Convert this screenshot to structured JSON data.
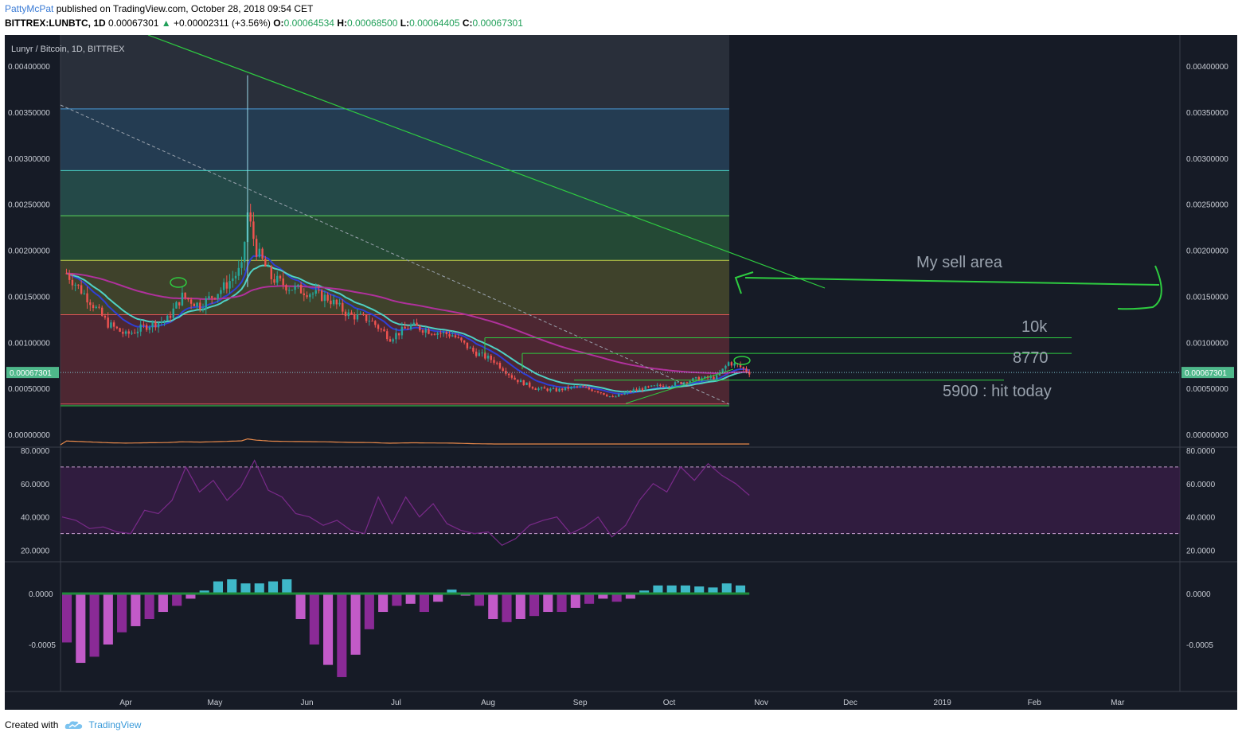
{
  "header": {
    "user": "PattyMcPat",
    "published": "published on TradingView.com, October 28, 2018 09:54 CET",
    "symbol": "BITTREX:LUNBTC, 1D",
    "last": "0.00067301",
    "arrow": "▲",
    "change": "+0.00002311 (+3.56%)",
    "o_label": "O:",
    "o": "0.00064534",
    "h_label": "H:",
    "h": "0.00068500",
    "l_label": "L:",
    "l": "0.00064405",
    "c_label": "C:",
    "c": "0.00067301"
  },
  "footer": {
    "created_with": "Created with",
    "brand": "TradingView"
  },
  "colors": {
    "background": "#161b26",
    "ema_fast": "#4fd1c5",
    "ma_slow": "#b0319c",
    "trendline": "#2ecc40",
    "annotation": "#9aa3ae",
    "rsi_line": "#7a2a8a",
    "up": "#26a69a",
    "down": "#ef5350"
  },
  "chart_data": [
    {
      "type": "candlestick",
      "title": "Lunyr / Bitcoin, 1D, BITTREX",
      "x_tick_labels": [
        "Apr",
        "May",
        "Jun",
        "Jul",
        "Aug",
        "Sep",
        "Oct",
        "Nov",
        "Dec",
        "2019",
        "Feb",
        "Mar"
      ],
      "y_tick_labels": [
        "0.00400000",
        "0.00350000",
        "0.00300000",
        "0.00250000",
        "0.00200000",
        "0.00150000",
        "0.00100000",
        "0.00050000",
        "0.00000000"
      ],
      "ylim": [
        0,
        0.0042
      ],
      "last_price_label": "0.00067301",
      "close_series": [
        [
          "2018-03-12",
          0.00175
        ],
        [
          "2018-03-20",
          0.00145
        ],
        [
          "2018-03-26",
          0.0012
        ],
        [
          "2018-04-01",
          0.00108
        ],
        [
          "2018-04-08",
          0.00118
        ],
        [
          "2018-04-15",
          0.00125
        ],
        [
          "2018-04-20",
          0.0015
        ],
        [
          "2018-04-26",
          0.0014
        ],
        [
          "2018-05-04",
          0.0016
        ],
        [
          "2018-05-10",
          0.0018
        ],
        [
          "2018-05-12",
          0.0024
        ],
        [
          "2018-05-15",
          0.002
        ],
        [
          "2018-05-20",
          0.0017
        ],
        [
          "2018-05-26",
          0.0016
        ],
        [
          "2018-06-01",
          0.00155
        ],
        [
          "2018-06-08",
          0.00148
        ],
        [
          "2018-06-15",
          0.0013
        ],
        [
          "2018-06-22",
          0.00125
        ],
        [
          "2018-06-29",
          0.00105
        ],
        [
          "2018-07-06",
          0.00118
        ],
        [
          "2018-07-13",
          0.00112
        ],
        [
          "2018-07-20",
          0.00108
        ],
        [
          "2018-07-27",
          0.0009
        ],
        [
          "2018-08-03",
          0.0008
        ],
        [
          "2018-08-10",
          0.0006
        ],
        [
          "2018-08-17",
          0.0005
        ],
        [
          "2018-08-24",
          0.00048
        ],
        [
          "2018-08-31",
          0.00052
        ],
        [
          "2018-09-07",
          0.00047
        ],
        [
          "2018-09-12",
          0.0004
        ],
        [
          "2018-09-19",
          0.00048
        ],
        [
          "2018-09-26",
          0.00052
        ],
        [
          "2018-10-03",
          0.00055
        ],
        [
          "2018-10-10",
          0.0006
        ],
        [
          "2018-10-17",
          0.00062
        ],
        [
          "2018-10-21",
          0.00078
        ],
        [
          "2018-10-24",
          0.00075
        ],
        [
          "2018-10-28",
          0.000673
        ]
      ],
      "fib_levels": [
        0.00033,
        0.0013,
        0.00189,
        0.002375,
        0.002865,
        0.003535
      ],
      "horizontal_lines": [
        {
          "label": "10k",
          "value": 0.00105
        },
        {
          "label": "8770",
          "value": 0.00088
        },
        {
          "label": "5900 : hit today",
          "value": 0.00059
        }
      ],
      "annotations": [
        "My sell area",
        "10k",
        "8770",
        "5900 : hit today"
      ]
    },
    {
      "type": "line",
      "name": "RSI",
      "y_tick_labels": [
        "80.0000",
        "60.0000",
        "40.0000",
        "20.0000"
      ],
      "ylim": [
        15,
        80
      ],
      "bands": [
        30,
        70
      ],
      "values": [
        40,
        38,
        33,
        34,
        31,
        30,
        44,
        42,
        50,
        70,
        55,
        62,
        50,
        58,
        74,
        56,
        52,
        42,
        40,
        35,
        38,
        32,
        30,
        52,
        36,
        52,
        40,
        48,
        36,
        32,
        30,
        31,
        23,
        27,
        35,
        38,
        40,
        30,
        34,
        40,
        28,
        35,
        50,
        60,
        55,
        70,
        62,
        72,
        65,
        60,
        53
      ]
    },
    {
      "type": "bar",
      "name": "Histogram",
      "y_tick_labels": [
        "0.0000",
        "-0.0005"
      ],
      "ylim": [
        -0.00088,
        0.0002
      ],
      "values": [
        -0.00048,
        -0.00068,
        -0.00062,
        -0.0005,
        -0.00038,
        -0.00032,
        -0.00025,
        -0.00018,
        -0.00012,
        -5e-05,
        3e-05,
        0.00012,
        0.00014,
        0.0001,
        0.0001,
        0.00012,
        0.00014,
        -0.00025,
        -0.0005,
        -0.0007,
        -0.00082,
        -0.0006,
        -0.00035,
        -0.00018,
        -0.00012,
        -0.0001,
        -0.00018,
        -8e-05,
        4e-05,
        -2e-05,
        -0.00012,
        -0.00025,
        -0.00028,
        -0.00025,
        -0.00022,
        -0.00018,
        -0.00018,
        -0.00014,
        -0.0001,
        -5e-05,
        -8e-05,
        -5e-05,
        3e-05,
        8e-05,
        8e-05,
        8e-05,
        7e-05,
        6e-05,
        0.0001,
        8e-05
      ]
    }
  ]
}
